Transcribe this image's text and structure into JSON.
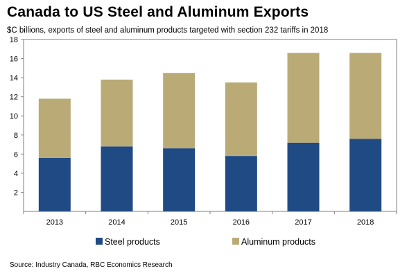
{
  "chart_data": {
    "type": "bar",
    "stacked": true,
    "title": "Canada to US Steel and Aluminum Exports",
    "subtitle": "$C billions,  exports of steel and aluminum products targeted with section 232 tariffs in 2018",
    "categories": [
      "2013",
      "2014",
      "2015",
      "2016",
      "2017",
      "2018"
    ],
    "series": [
      {
        "name": "Steel products",
        "values": [
          5.6,
          6.8,
          6.6,
          5.8,
          7.2,
          7.6
        ],
        "color": "#1f4a84"
      },
      {
        "name": "Aluminum products",
        "values": [
          6.2,
          7.0,
          7.9,
          7.7,
          9.4,
          9.0
        ],
        "color": "#baaa76"
      }
    ],
    "ylim": [
      0,
      18
    ],
    "yticks": [
      "2",
      "4",
      "6",
      "8",
      "10",
      "12",
      "14",
      "16",
      "18"
    ],
    "xlabel": "",
    "ylabel": "",
    "legend": "bottom",
    "source": "Source: Industry Canada, RBC Economics Research"
  }
}
